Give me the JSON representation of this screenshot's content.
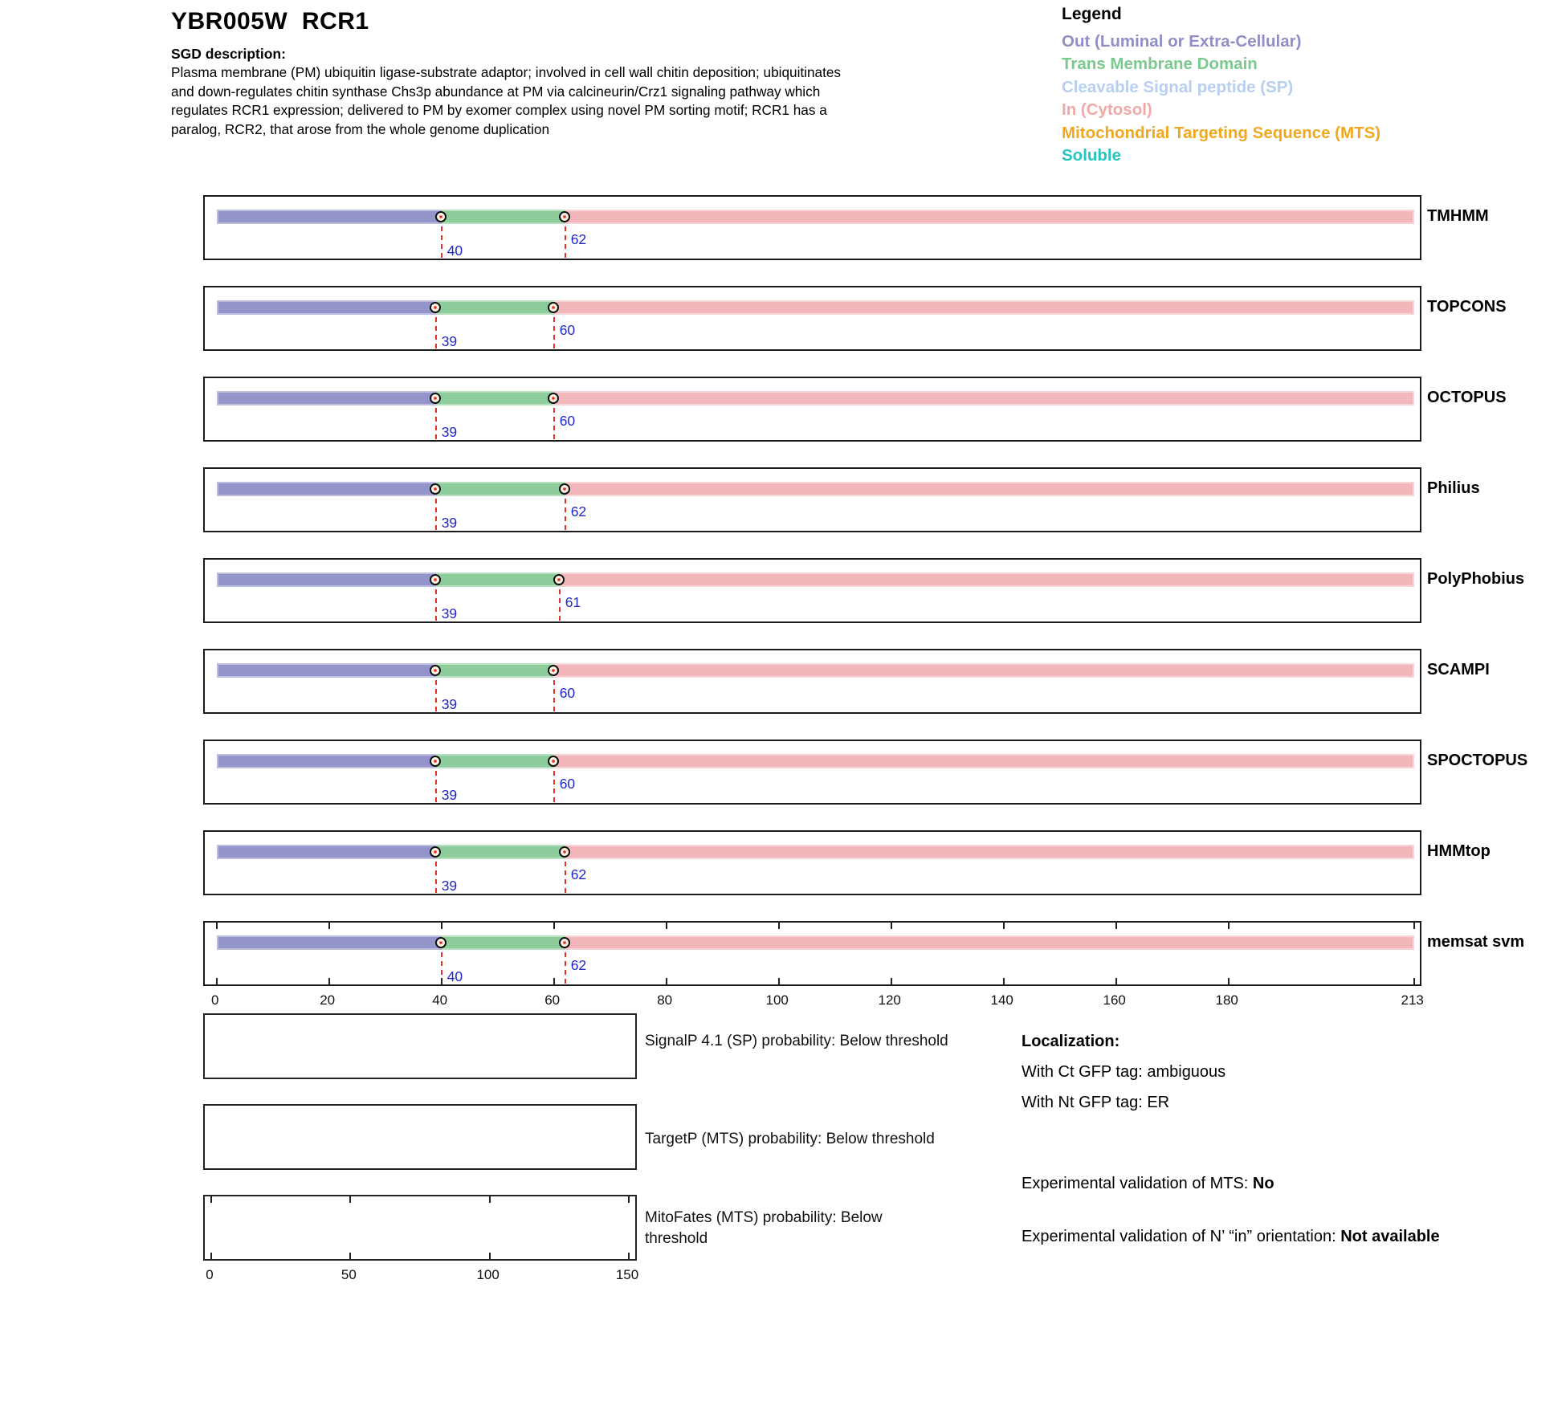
{
  "page": {
    "title": "YBR005W  RCR1"
  },
  "sgd": {
    "heading": "SGD description:",
    "text": "Plasma membrane (PM) ubiquitin ligase-substrate adaptor; involved in cell wall chitin deposition; ubiquitinates and down-regulates chitin synthase Chs3p abundance at PM via calcineurin/Crz1 signaling pathway which regulates RCR1 expression; delivered to PM by exomer complex using novel PM sorting motif; RCR1 has a paralog, RCR2, that arose from the whole genome duplication"
  },
  "legend": {
    "title": "Legend",
    "items": [
      {
        "label": "Out (Luminal or Extra-Cellular)",
        "color": "#8E8FC6"
      },
      {
        "label": "Trans Membrane Domain",
        "color": "#7CC98F"
      },
      {
        "label": "Cleavable Signal peptide (SP)",
        "color": "#B7CFF2"
      },
      {
        "label": "In (Cytosol)",
        "color": "#F2A9A5"
      },
      {
        "label": "Mitochondrial Targeting Sequence (MTS)",
        "color": "#F0A820"
      },
      {
        "label": "Soluble",
        "color": "#26C5C0"
      }
    ]
  },
  "chart_data": {
    "type": "bar",
    "subtype": "protein-topology-prediction-tracks",
    "protein_length": 213,
    "xlim": [
      0,
      213
    ],
    "xticks": [
      0,
      20,
      40,
      60,
      80,
      100,
      120,
      140,
      160,
      180,
      213
    ],
    "region_colors": {
      "out": "#9394C9",
      "tm": "#8CCD9B",
      "in": "#F1B7BB"
    },
    "boundary_label_color": "#2026CE",
    "boundary_line_color": "#E5312B",
    "tracks": [
      {
        "name": "TMHMM",
        "regions": [
          [
            "out",
            0,
            40
          ],
          [
            "tm",
            40,
            62
          ],
          [
            "in",
            62,
            213
          ]
        ],
        "boundary_labels": [
          40,
          62
        ]
      },
      {
        "name": "TOPCONS",
        "regions": [
          [
            "out",
            0,
            39
          ],
          [
            "tm",
            39,
            60
          ],
          [
            "in",
            60,
            213
          ]
        ],
        "boundary_labels": [
          39,
          60
        ]
      },
      {
        "name": "OCTOPUS",
        "regions": [
          [
            "out",
            0,
            39
          ],
          [
            "tm",
            39,
            60
          ],
          [
            "in",
            60,
            213
          ]
        ],
        "boundary_labels": [
          39,
          60
        ]
      },
      {
        "name": "Philius",
        "regions": [
          [
            "out",
            0,
            39
          ],
          [
            "tm",
            39,
            62
          ],
          [
            "in",
            62,
            213
          ]
        ],
        "boundary_labels": [
          39,
          62
        ]
      },
      {
        "name": "PolyPhobius",
        "regions": [
          [
            "out",
            0,
            39
          ],
          [
            "tm",
            39,
            61
          ],
          [
            "in",
            61,
            213
          ]
        ],
        "boundary_labels": [
          39,
          61
        ]
      },
      {
        "name": "SCAMPI",
        "regions": [
          [
            "out",
            0,
            39
          ],
          [
            "tm",
            39,
            60
          ],
          [
            "in",
            60,
            213
          ]
        ],
        "boundary_labels": [
          39,
          60
        ]
      },
      {
        "name": "SPOCTOPUS",
        "regions": [
          [
            "out",
            0,
            39
          ],
          [
            "tm",
            39,
            60
          ],
          [
            "in",
            60,
            213
          ]
        ],
        "boundary_labels": [
          39,
          60
        ]
      },
      {
        "name": "HMMtop",
        "regions": [
          [
            "out",
            0,
            39
          ],
          [
            "tm",
            39,
            62
          ],
          [
            "in",
            62,
            213
          ]
        ],
        "boundary_labels": [
          39,
          62
        ]
      },
      {
        "name": "memsat svm",
        "regions": [
          [
            "out",
            0,
            40
          ],
          [
            "tm",
            40,
            62
          ],
          [
            "in",
            62,
            213
          ]
        ],
        "boundary_labels": [
          40,
          62
        ]
      }
    ]
  },
  "probability_plots": [
    {
      "label": "SignalP 4.1 (SP) probability: Below threshold",
      "xticks": []
    },
    {
      "label": "TargetP (MTS) probability: Below threshold",
      "xticks": []
    },
    {
      "label": "MitoFates (MTS) probability: Below threshold",
      "xticks": [
        0,
        50,
        100,
        150
      ]
    }
  ],
  "localization": {
    "heading": "Localization:",
    "gfp_lines": [
      "With Ct GFP tag: ambiguous",
      "With Nt GFP tag: ER"
    ],
    "validations": [
      {
        "prefix": "Experimental validation of MTS: ",
        "value": "No"
      },
      {
        "prefix": "Experimental validation of N’ “in” orientation: ",
        "value": "Not available"
      }
    ]
  }
}
